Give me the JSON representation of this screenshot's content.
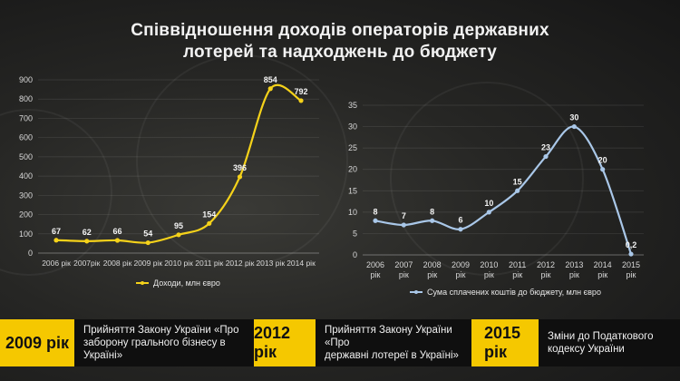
{
  "title_line1": "Співвідношення доходів операторів державних",
  "title_line2": "лотерей та надходжень до бюджету",
  "colors": {
    "income": "#f5d21a",
    "budget": "#a9c7e8",
    "accent": "#f5c800"
  },
  "chart_data": [
    {
      "type": "line",
      "categories": [
        "2006 рік",
        "2007рік",
        "2008 рік",
        "2009 рік",
        "2010 рік",
        "2011 рік",
        "2012 рік",
        "2013 рік",
        "2014 рік"
      ],
      "values": [
        67,
        62,
        66,
        54,
        95,
        154,
        396,
        854,
        792
      ],
      "labels": [
        "67",
        "62",
        "66",
        "54",
        "95",
        "154",
        "396",
        "854",
        "792"
      ],
      "y_ticks": [
        "0",
        "100",
        "200",
        "300",
        "400",
        "500",
        "600",
        "700",
        "800",
        "900"
      ],
      "ylim": [
        0,
        900
      ],
      "legend": "Доходи, млн євро",
      "legend_position": "bottom"
    },
    {
      "type": "line",
      "categories": [
        [
          "2006",
          "рік"
        ],
        [
          "2007",
          "рік"
        ],
        [
          "2008",
          "рік"
        ],
        [
          "2009",
          "рік"
        ],
        [
          "2010",
          "рік"
        ],
        [
          "2011",
          "рік"
        ],
        [
          "2012",
          "рік"
        ],
        [
          "2013",
          "рік"
        ],
        [
          "2014",
          "рік"
        ],
        [
          "2015",
          "рік"
        ]
      ],
      "values": [
        8,
        7,
        8,
        6,
        10,
        15,
        23,
        30,
        20,
        0.2
      ],
      "labels": [
        "8",
        "7",
        "8",
        "6",
        "10",
        "15",
        "23",
        "30",
        "20",
        "0,2"
      ],
      "y_ticks": [
        "0",
        "5",
        "10",
        "15",
        "20",
        "25",
        "30",
        "35"
      ],
      "ylim": [
        0,
        35
      ],
      "legend": "Сума сплачених коштів до бюджету, млн євро",
      "legend_position": "bottom"
    }
  ],
  "milestones": [
    {
      "year": "2009 рік",
      "text_line1": "Прийняття Закону України «Про",
      "text_line2": "заборону грального бізнесу в Україні»"
    },
    {
      "year": "2012 рік",
      "text_line1": "Прийняття Закону України «Про",
      "text_line2": "державні лотереї в Україні»"
    },
    {
      "year": "2015 рік",
      "text_line1": "Зміни до Податкового",
      "text_line2": "кодексу України"
    }
  ]
}
